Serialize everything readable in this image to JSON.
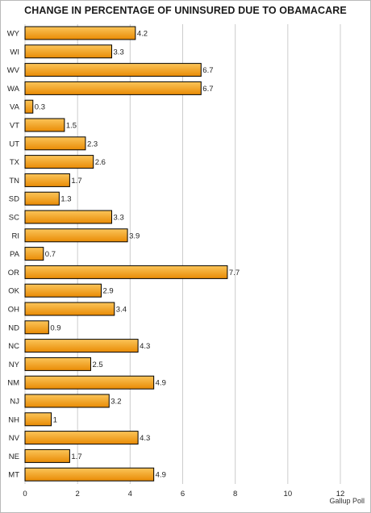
{
  "title": "CHANGE IN PERCENTAGE OF UNINSURED DUE TO OBAMACARE",
  "source": "Gallup Poll",
  "colors": {
    "bar_fill_light": "#fbc55a",
    "bar_fill_dark": "#e98b05",
    "bar_stroke": "#000000",
    "grid": "#cccccc"
  },
  "chart_data": {
    "type": "bar",
    "orientation": "horizontal",
    "title": "CHANGE IN PERCENTAGE OF UNINSURED DUE TO OBAMACARE",
    "xlabel": "",
    "ylabel": "",
    "xlim": [
      0,
      12
    ],
    "xticks": [
      0,
      2,
      4,
      6,
      8,
      10,
      12
    ],
    "grid": "vertical",
    "categories": [
      "WY",
      "WI",
      "WV",
      "WA",
      "VA",
      "VT",
      "UT",
      "TX",
      "TN",
      "SD",
      "SC",
      "RI",
      "PA",
      "OR",
      "OK",
      "OH",
      "ND",
      "NC",
      "NY",
      "NM",
      "NJ",
      "NH",
      "NV",
      "NE",
      "MT"
    ],
    "values": [
      4.2,
      3.3,
      6.7,
      6.7,
      0.3,
      1.5,
      2.3,
      2.6,
      1.7,
      1.3,
      3.3,
      3.9,
      0.7,
      7.7,
      2.9,
      3.4,
      0.9,
      4.3,
      2.5,
      4.9,
      3.2,
      1,
      4.3,
      1.7,
      4.9
    ],
    "value_labels": [
      "4.2",
      "3.3",
      "6.7",
      "6.7",
      "0.3",
      "1.5",
      "2.3",
      "2.6",
      "1.7",
      "1.3",
      "3.3",
      "3.9",
      "0.7",
      "7.7",
      "2.9",
      "3.4",
      "0.9",
      "4.3",
      "2.5",
      "4.9",
      "3.2",
      "1",
      "4.3",
      "1.7",
      "4.9"
    ]
  }
}
